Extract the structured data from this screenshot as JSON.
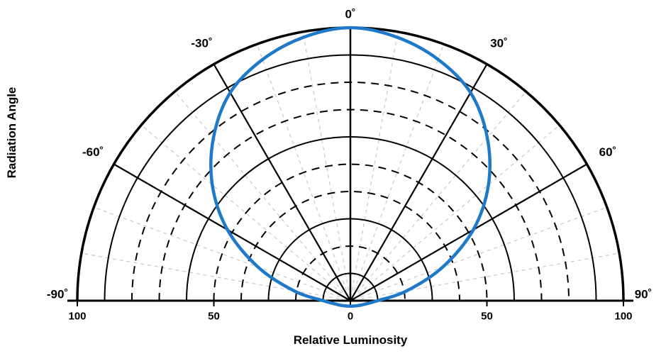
{
  "chart_data": {
    "type": "line",
    "projection": "half-polar",
    "title": "",
    "xlabel": "Relative Luminosity",
    "ylabel": "Radiation Angle",
    "r_axis_range": [
      0,
      100
    ],
    "r_axis_labels": [
      {
        "pos": -100,
        "label": "100"
      },
      {
        "pos": -50,
        "label": "50"
      },
      {
        "pos": 0,
        "label": "0"
      },
      {
        "pos": 50,
        "label": "50"
      },
      {
        "pos": 100,
        "label": "100"
      }
    ],
    "rings": [
      {
        "r": 100,
        "style": "solid",
        "width": 3.5
      },
      {
        "r": 90,
        "style": "solid",
        "width": 2
      },
      {
        "r": 80,
        "style": "dashed",
        "width": 2
      },
      {
        "r": 70,
        "style": "dashed",
        "width": 2
      },
      {
        "r": 60,
        "style": "solid",
        "width": 2
      },
      {
        "r": 50,
        "style": "dashed",
        "width": 2
      },
      {
        "r": 40,
        "style": "dashed",
        "width": 2
      },
      {
        "r": 30,
        "style": "solid",
        "width": 2
      },
      {
        "r": 20,
        "style": "dashed",
        "width": 2
      },
      {
        "r": 10,
        "style": "solid",
        "width": 2
      }
    ],
    "major_spokes_deg": [
      -60,
      -30,
      0,
      30,
      60
    ],
    "minor_spokes_deg": [
      -80,
      -70,
      -50,
      -40,
      -20,
      -10,
      10,
      20,
      40,
      50,
      70,
      80
    ],
    "angle_labels": [
      {
        "deg": -90,
        "label": "-90˚"
      },
      {
        "deg": -60,
        "label": "-60˚"
      },
      {
        "deg": -30,
        "label": "-30˚"
      },
      {
        "deg": 0,
        "label": "0˚"
      },
      {
        "deg": 30,
        "label": "30˚"
      },
      {
        "deg": 60,
        "label": "60˚"
      },
      {
        "deg": 90,
        "label": "90˚"
      }
    ],
    "colors": {
      "grid": "#000000",
      "minor_spoke": "#c8c8c8",
      "curve": "#1e79c8",
      "background": "#ffffff"
    },
    "series": [
      {
        "name": "relative-luminosity",
        "color": "#1e79c8",
        "stroke_width": 4.5,
        "closed": true,
        "points": [
          {
            "deg": -180,
            "r": 2
          },
          {
            "deg": -140,
            "r": 2.5
          },
          {
            "deg": -110,
            "r": 4.5
          },
          {
            "deg": -90,
            "r": 10
          },
          {
            "deg": -80,
            "r": 21
          },
          {
            "deg": -70,
            "r": 36
          },
          {
            "deg": -60,
            "r": 52
          },
          {
            "deg": -50,
            "r": 66
          },
          {
            "deg": -40,
            "r": 78
          },
          {
            "deg": -30,
            "r": 88
          },
          {
            "deg": -20,
            "r": 94
          },
          {
            "deg": -10,
            "r": 98
          },
          {
            "deg": 0,
            "r": 100
          },
          {
            "deg": 10,
            "r": 98
          },
          {
            "deg": 20,
            "r": 94
          },
          {
            "deg": 30,
            "r": 88
          },
          {
            "deg": 40,
            "r": 78
          },
          {
            "deg": 50,
            "r": 66
          },
          {
            "deg": 60,
            "r": 52
          },
          {
            "deg": 70,
            "r": 36
          },
          {
            "deg": 80,
            "r": 21
          },
          {
            "deg": 90,
            "r": 10
          },
          {
            "deg": 110,
            "r": 4.5
          },
          {
            "deg": 140,
            "r": 2.5
          }
        ]
      }
    ]
  }
}
